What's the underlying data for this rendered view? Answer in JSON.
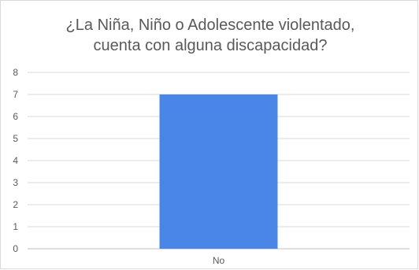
{
  "chart_data": {
    "type": "bar",
    "title_lines": [
      "¿La Niña, Niño o Adolescente violentado,",
      "cuenta con alguna discapacidad?"
    ],
    "categories": [
      "No"
    ],
    "values": [
      7
    ],
    "ylim": [
      0,
      8
    ],
    "yticks": [
      0,
      1,
      2,
      3,
      4,
      5,
      6,
      7,
      8
    ],
    "grid": true,
    "legend": "none",
    "bar_color": "#4a86e8",
    "grid_color": "#d9d9d9",
    "text_color": "#595959"
  }
}
